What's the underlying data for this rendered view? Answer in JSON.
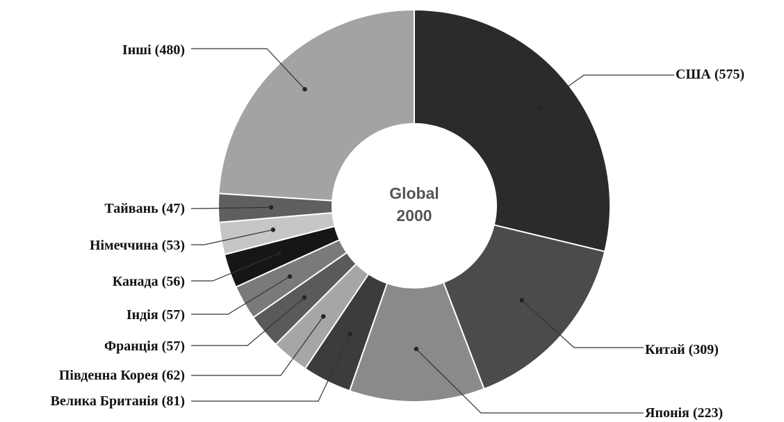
{
  "chart_data": {
    "type": "pie",
    "variant": "donut",
    "center_label": [
      "Global",
      "2000"
    ],
    "slices": [
      {
        "label": "США",
        "value": 575,
        "display": "(575)",
        "color": "#2b2b2b"
      },
      {
        "label": "Китай",
        "value": 309,
        "display": "(309)",
        "color": "#4b4b4b"
      },
      {
        "label": "Японія",
        "value": 223,
        "display": "(223)",
        "color": "#8a8a8a"
      },
      {
        "label": "Велика Британія",
        "value": 81,
        "display": "(81)",
        "color": "#3c3c3c"
      },
      {
        "label": "Південна Корея",
        "value": 62,
        "display": "(62)",
        "color": "#a6a6a6"
      },
      {
        "label": "Франція",
        "value": 57,
        "display": "(57)",
        "color": "#5a5a5a"
      },
      {
        "label": "Індія",
        "value": 57,
        "display": "(57)",
        "color": "#7a7a7a"
      },
      {
        "label": "Канада",
        "value": 56,
        "display": "(56)",
        "color": "#161616"
      },
      {
        "label": "Німеччина",
        "value": 53,
        "display": "(53)",
        "color": "#c6c6c6"
      },
      {
        "label": "Тайвань",
        "value": 47,
        "display": "(47)",
        "color": "#5f5f5f"
      },
      {
        "label": "Інші",
        "value": 480,
        "display": "(480)",
        "color": "#a3a3a3"
      }
    ]
  }
}
